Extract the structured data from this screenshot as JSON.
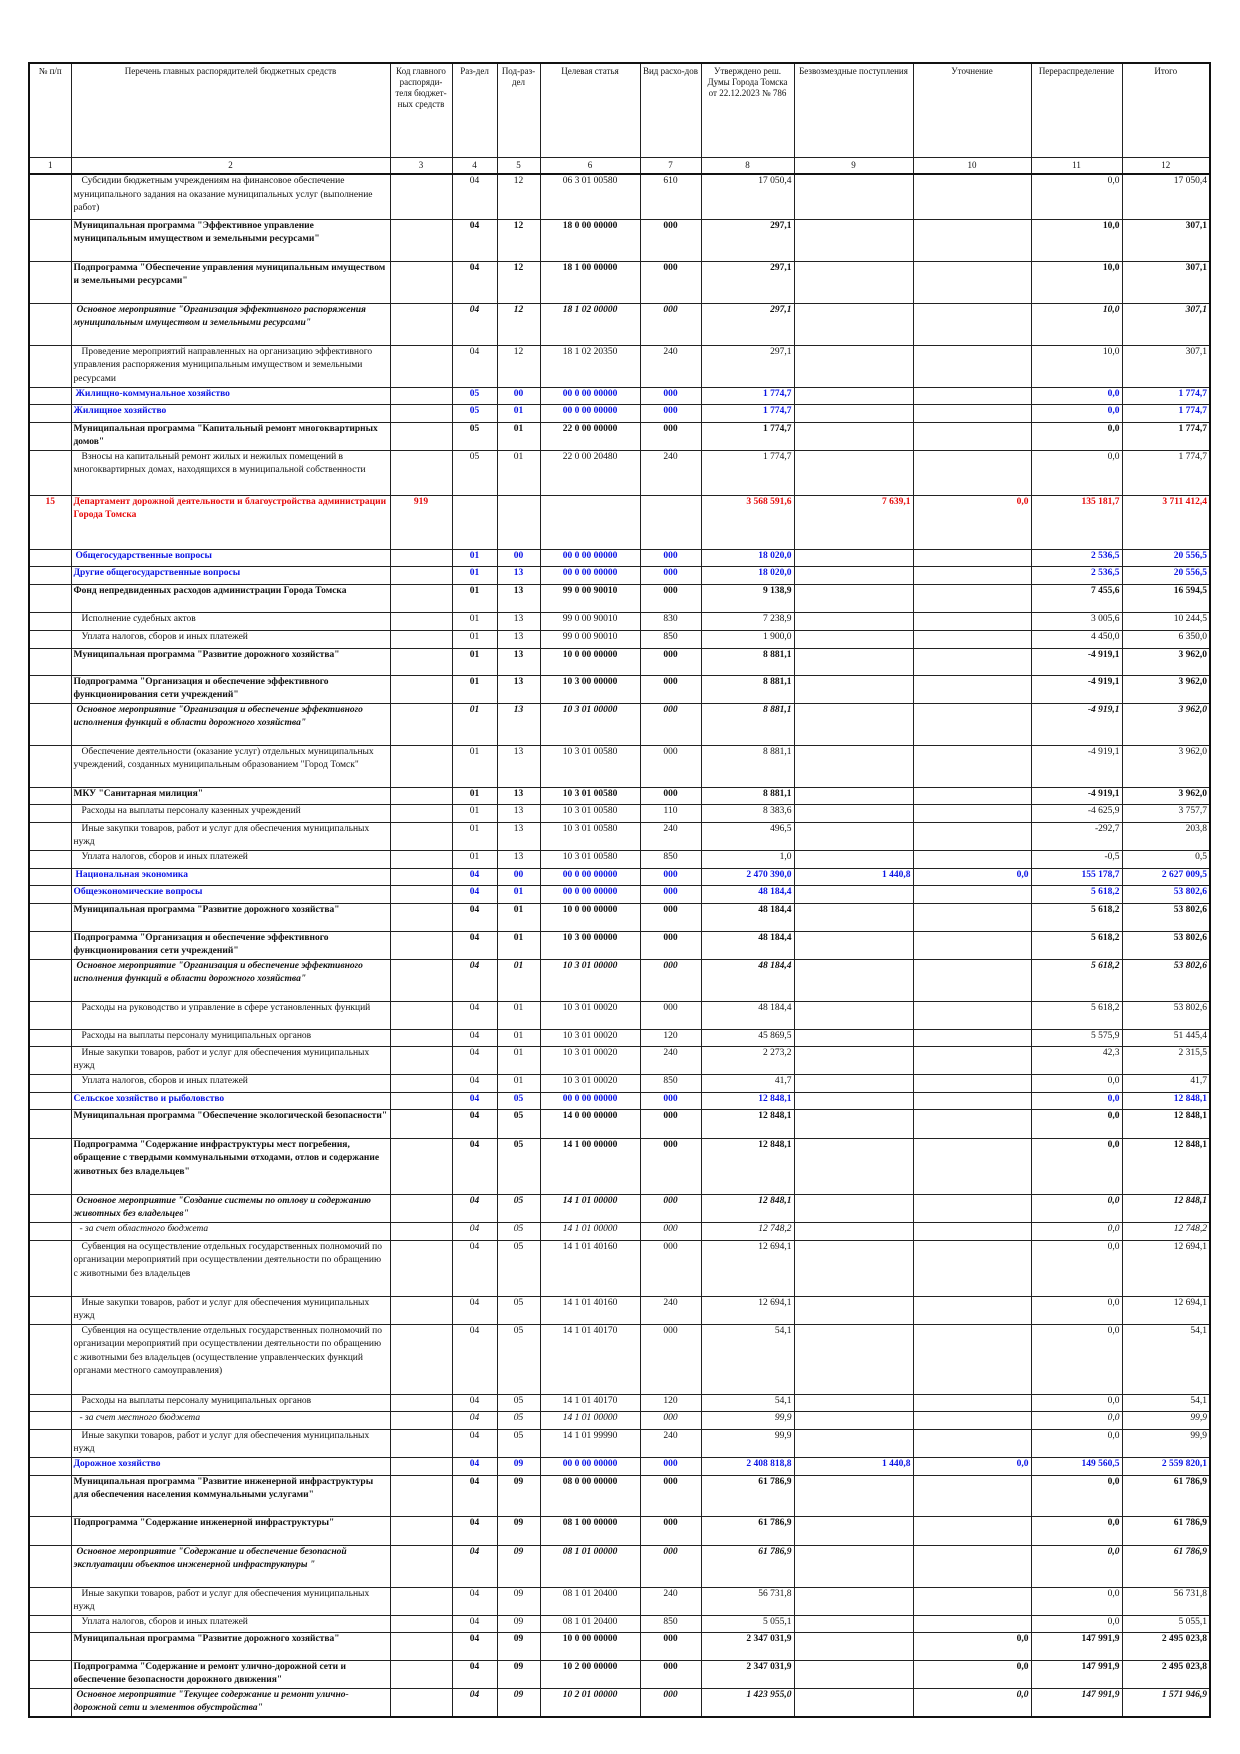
{
  "header": {
    "columns": [
      "№ п/п",
      "Перечень главных распорядителей бюджетных средств",
      "Код главного распоряди-теля бюджет-ных средств",
      "Раз-дел",
      "Под-раз-дел",
      "Целевая статья",
      "Вид расхо-дов",
      "Утверждено реш. Думы Города Томска от 22.12.2023 № 786",
      "Безвозмездные поступления",
      "Уточнение",
      "Перераспределение",
      "Итого"
    ],
    "numbers": [
      "1",
      "2",
      "3",
      "4",
      "5",
      "6",
      "7",
      "8",
      "9",
      "10",
      "11",
      "12"
    ]
  },
  "colors": {
    "section": "#0a14e6",
    "department": "#e60a0a",
    "text": "#111111"
  },
  "rows": [
    {
      "level": "item",
      "num": "",
      "name": "Субсидии бюджетным учреждениям на финансовое обеспечение муниципального задания на оказание муниципальных услуг (выполнение работ)",
      "code": "",
      "rz": "04",
      "prz": "12",
      "cs": "06 3 01 00580",
      "vr": "610",
      "approved": "17 050,4",
      "grants": "",
      "clarif": "",
      "redistr": "0,0",
      "total": "17 050,4"
    },
    {
      "level": "program",
      "num": "",
      "name": "Муниципальная программа \"Эффективное управление муниципальным имуществом и земельными ресурсами\"",
      "code": "",
      "rz": "04",
      "prz": "12",
      "cs": "18 0 00 00000",
      "vr": "000",
      "approved": "297,1",
      "grants": "",
      "clarif": "",
      "redistr": "10,0",
      "total": "307,1"
    },
    {
      "level": "program",
      "num": "",
      "name": "Подпрограмма \"Обеспечение управления муниципальным имуществом и земельными ресурсами\"",
      "code": "",
      "rz": "04",
      "prz": "12",
      "cs": "18 1 00 00000",
      "vr": "000",
      "approved": "297,1",
      "grants": "",
      "clarif": "",
      "redistr": "10,0",
      "total": "307,1"
    },
    {
      "level": "event",
      "num": "",
      "name": "Основное мероприятие \"Организация эффективного распоряжения муниципальным имуществом и земельными ресурсами\"",
      "code": "",
      "rz": "04",
      "prz": "12",
      "cs": "18 1 02 00000",
      "vr": "000",
      "approved": "297,1",
      "grants": "",
      "clarif": "",
      "redistr": "10,0",
      "total": "307,1"
    },
    {
      "level": "item",
      "num": "",
      "name": "Проведение мероприятий направленных на организацию эффективного управления распоряжения муниципальным имуществом и земельными ресурсами",
      "code": "",
      "rz": "04",
      "prz": "12",
      "cs": "18 1 02 20350",
      "vr": "240",
      "approved": "297,1",
      "grants": "",
      "clarif": "",
      "redistr": "10,0",
      "total": "307,1"
    },
    {
      "level": "section-major",
      "num": "",
      "name": "Жилищно-коммунальное хозяйство",
      "code": "",
      "rz": "05",
      "prz": "00",
      "cs": "00 0 00 00000",
      "vr": "000",
      "approved": "1 774,7",
      "grants": "",
      "clarif": "",
      "redistr": "0,0",
      "total": "1 774,7"
    },
    {
      "level": "section",
      "num": "",
      "name": "Жилищное хозяйство",
      "code": "",
      "rz": "05",
      "prz": "01",
      "cs": "00 0 00 00000",
      "vr": "000",
      "approved": "1 774,7",
      "grants": "",
      "clarif": "",
      "redistr": "0,0",
      "total": "1 774,7"
    },
    {
      "level": "program",
      "num": "",
      "name": "Муниципальная программа \"Капитальный ремонт многоквартирных домов\"",
      "code": "",
      "rz": "05",
      "prz": "01",
      "cs": "22 0 00 00000",
      "vr": "000",
      "approved": "1 774,7",
      "grants": "",
      "clarif": "",
      "redistr": "0,0",
      "total": "1 774,7"
    },
    {
      "level": "item",
      "num": "",
      "name": "Взносы на капитальный ремонт жилых и нежилых помещений в многоквартирных домах, находящихся в муниципальной собственности",
      "code": "",
      "rz": "05",
      "prz": "01",
      "cs": "22 0 00 20480",
      "vr": "240",
      "approved": "1 774,7",
      "grants": "",
      "clarif": "",
      "redistr": "0,0",
      "total": "1 774,7"
    },
    {
      "level": "department",
      "num": "15",
      "name": "Департамент дорожной деятельности и благоустройства администрации Города Томска",
      "code": "919",
      "rz": "",
      "prz": "",
      "cs": "",
      "vr": "",
      "approved": "3 568 591,6",
      "grants": "7 639,1",
      "clarif": "0,0",
      "redistr": "135 181,7",
      "total": "3 711 412,4"
    },
    {
      "level": "section-major",
      "num": "",
      "name": "Общегосударственные вопросы",
      "code": "",
      "rz": "01",
      "prz": "00",
      "cs": "00 0 00 00000",
      "vr": "000",
      "approved": "18 020,0",
      "grants": "",
      "clarif": "",
      "redistr": "2 536,5",
      "total": "20 556,5"
    },
    {
      "level": "section",
      "num": "",
      "name": "Другие общегосударственные вопросы",
      "code": "",
      "rz": "01",
      "prz": "13",
      "cs": "00 0 00 00000",
      "vr": "000",
      "approved": "18 020,0",
      "grants": "",
      "clarif": "",
      "redistr": "2 536,5",
      "total": "20 556,5"
    },
    {
      "level": "program",
      "num": "",
      "name": "  Фонд непредвиденных расходов администрации Города Томска",
      "code": "",
      "rz": "01",
      "prz": "13",
      "cs": "99 0 00 90010",
      "vr": "000",
      "approved": "9 138,9",
      "grants": "",
      "clarif": "",
      "redistr": "7 455,6",
      "total": "16 594,5"
    },
    {
      "level": "item",
      "num": "",
      "name": "Исполнение судебных актов",
      "code": "",
      "rz": "01",
      "prz": "13",
      "cs": "99 0 00 90010",
      "vr": "830",
      "approved": "7 238,9",
      "grants": "",
      "clarif": "",
      "redistr": "3 005,6",
      "total": "10 244,5"
    },
    {
      "level": "item",
      "num": "",
      "name": "Уплата налогов, сборов и иных платежей",
      "code": "",
      "rz": "01",
      "prz": "13",
      "cs": "99 0 00 90010",
      "vr": "850",
      "approved": "1 900,0",
      "grants": "",
      "clarif": "",
      "redistr": "4 450,0",
      "total": "6 350,0"
    },
    {
      "level": "program",
      "num": "",
      "name": "Муниципальная программа \"Развитие дорожного хозяйства\"",
      "code": "",
      "rz": "01",
      "prz": "13",
      "cs": "10 0 00 00000",
      "vr": "000",
      "approved": "8 881,1",
      "grants": "",
      "clarif": "",
      "redistr": "-4 919,1",
      "total": "3 962,0"
    },
    {
      "level": "program",
      "num": "",
      "name": "Подпрограмма \"Организация и обеспечение эффективного функционирования сети учреждений\"",
      "code": "",
      "rz": "01",
      "prz": "13",
      "cs": "10 3 00 00000",
      "vr": "000",
      "approved": "8 881,1",
      "grants": "",
      "clarif": "",
      "redistr": "-4 919,1",
      "total": "3 962,0"
    },
    {
      "level": "event",
      "num": "",
      "name": "Основное мероприятие \"Организация и обеспечение эффективного исполнения функций в области дорожного хозяйства\"",
      "code": "",
      "rz": "01",
      "prz": "13",
      "cs": "10 3 01 00000",
      "vr": "000",
      "approved": "8 881,1",
      "grants": "",
      "clarif": "",
      "redistr": "-4 919,1",
      "total": "3 962,0"
    },
    {
      "level": "item",
      "num": "",
      "name": "Обеспечение деятельности (оказание услуг) отдельных муниципальных учреждений, созданных муниципальным образованием \"Город Томск\"",
      "code": "",
      "rz": "01",
      "prz": "13",
      "cs": "10 3 01 00580",
      "vr": "000",
      "approved": "8 881,1",
      "grants": "",
      "clarif": "",
      "redistr": "-4 919,1",
      "total": "3 962,0"
    },
    {
      "level": "program",
      "num": "",
      "name": "МКУ \"Санитарная милиция\"",
      "code": "",
      "rz": "01",
      "prz": "13",
      "cs": "10 3 01 00580",
      "vr": "000",
      "approved": "8 881,1",
      "grants": "",
      "clarif": "",
      "redistr": "-4 919,1",
      "total": "3 962,0"
    },
    {
      "level": "item",
      "num": "",
      "name": "Расходы на выплаты персоналу казенных учреждений",
      "code": "",
      "rz": "01",
      "prz": "13",
      "cs": "10 3 01 00580",
      "vr": "110",
      "approved": "8 383,6",
      "grants": "",
      "clarif": "",
      "redistr": "-4 625,9",
      "total": "3 757,7"
    },
    {
      "level": "item",
      "num": "",
      "name": "Иные закупки товаров, работ и услуг для обеспечения муниципальных нужд",
      "code": "",
      "rz": "01",
      "prz": "13",
      "cs": "10 3 01 00580",
      "vr": "240",
      "approved": "496,5",
      "grants": "",
      "clarif": "",
      "redistr": "-292,7",
      "total": "203,8"
    },
    {
      "level": "item",
      "num": "",
      "name": "Уплата налогов, сборов и иных платежей",
      "code": "",
      "rz": "01",
      "prz": "13",
      "cs": "10 3 01 00580",
      "vr": "850",
      "approved": "1,0",
      "grants": "",
      "clarif": "",
      "redistr": "-0,5",
      "total": "0,5"
    },
    {
      "level": "section-major",
      "num": "",
      "name": "Национальная экономика",
      "code": "",
      "rz": "04",
      "prz": "00",
      "cs": "00 0 00 00000",
      "vr": "000",
      "approved": "2 470 390,0",
      "grants": "1 440,8",
      "clarif": "0,0",
      "redistr": "155 178,7",
      "total": "2 627 009,5"
    },
    {
      "level": "section",
      "num": "",
      "name": "Общеэкономические вопросы",
      "code": "",
      "rz": "04",
      "prz": "01",
      "cs": "00 0 00 00000",
      "vr": "000",
      "approved": "48 184,4",
      "grants": "",
      "clarif": "",
      "redistr": "5 618,2",
      "total": "53 802,6"
    },
    {
      "level": "program",
      "num": "",
      "name": "Муниципальная программа \"Развитие дорожного хозяйства\"",
      "code": "",
      "rz": "04",
      "prz": "01",
      "cs": "10 0 00 00000",
      "vr": "000",
      "approved": "48 184,4",
      "grants": "",
      "clarif": "",
      "redistr": "5 618,2",
      "total": "53 802,6"
    },
    {
      "level": "program",
      "num": "",
      "name": "Подпрограмма \"Организация и обеспечение эффективного функционирования сети учреждений\"",
      "code": "",
      "rz": "04",
      "prz": "01",
      "cs": "10 3 00 00000",
      "vr": "000",
      "approved": "48 184,4",
      "grants": "",
      "clarif": "",
      "redistr": "5 618,2",
      "total": "53 802,6"
    },
    {
      "level": "event",
      "num": "",
      "name": "Основное мероприятие \"Организация и обеспечение эффективного исполнения функций в области дорожного хозяйства\"",
      "code": "",
      "rz": "04",
      "prz": "01",
      "cs": "10 3 01 00000",
      "vr": "000",
      "approved": "48 184,4",
      "grants": "",
      "clarif": "",
      "redistr": "5 618,2",
      "total": "53 802,6"
    },
    {
      "level": "item",
      "num": "",
      "name": "Расходы на руководство и управление в сфере установленных функций",
      "code": "",
      "rz": "04",
      "prz": "01",
      "cs": "10 3 01 00020",
      "vr": "000",
      "approved": "48 184,4",
      "grants": "",
      "clarif": "",
      "redistr": "5 618,2",
      "total": "53 802,6"
    },
    {
      "level": "item",
      "num": "",
      "name": "Расходы на выплаты персоналу муниципальных органов",
      "code": "",
      "rz": "04",
      "prz": "01",
      "cs": "10 3 01 00020",
      "vr": "120",
      "approved": "45 869,5",
      "grants": "",
      "clarif": "",
      "redistr": "5 575,9",
      "total": "51 445,4"
    },
    {
      "level": "item",
      "num": "",
      "name": "Иные закупки товаров, работ и услуг для обеспечения муниципальных нужд",
      "code": "",
      "rz": "04",
      "prz": "01",
      "cs": "10 3 01 00020",
      "vr": "240",
      "approved": "2 273,2",
      "grants": "",
      "clarif": "",
      "redistr": "42,3",
      "total": "2 315,5"
    },
    {
      "level": "item",
      "num": "",
      "name": "Уплата налогов, сборов и иных платежей",
      "code": "",
      "rz": "04",
      "prz": "01",
      "cs": "10 3 01 00020",
      "vr": "850",
      "approved": "41,7",
      "grants": "",
      "clarif": "",
      "redistr": "0,0",
      "total": "41,7"
    },
    {
      "level": "section",
      "num": "",
      "name": "Сельское хозяйство и рыболовство",
      "code": "",
      "rz": "04",
      "prz": "05",
      "cs": "00 0 00 00000",
      "vr": "000",
      "approved": "12 848,1",
      "grants": "",
      "clarif": "",
      "redistr": "0,0",
      "total": "12 848,1"
    },
    {
      "level": "program",
      "num": "",
      "name": "Муниципальная программа \"Обеспечение экологической безопасности\"",
      "code": "",
      "rz": "04",
      "prz": "05",
      "cs": "14 0 00 00000",
      "vr": "000",
      "approved": "12 848,1",
      "grants": "",
      "clarif": "",
      "redistr": "0,0",
      "total": "12 848,1"
    },
    {
      "level": "program",
      "num": "",
      "name": "Подпрограмма \"Содержание инфраструктуры мест погребения, обращение с твердыми коммунальными отходами, отлов и содержание животных без владельцев\"",
      "code": "",
      "rz": "04",
      "prz": "05",
      "cs": "14 1 00 00000",
      "vr": "000",
      "approved": "12 848,1",
      "grants": "",
      "clarif": "",
      "redistr": "0,0",
      "total": "12 848,1"
    },
    {
      "level": "event",
      "num": "",
      "name": "Основное мероприятие \"Создание системы по отлову и содержанию животных без владельцев\"",
      "code": "",
      "rz": "04",
      "prz": "05",
      "cs": "14 1 01 00000",
      "vr": "000",
      "approved": "12 848,1",
      "grants": "",
      "clarif": "",
      "redistr": "0,0",
      "total": "12 848,1"
    },
    {
      "level": "source",
      "num": "",
      "name": "- за счет областного бюджета",
      "code": "",
      "rz": "04",
      "prz": "05",
      "cs": "14 1 01 00000",
      "vr": "000",
      "approved": "12 748,2",
      "grants": "",
      "clarif": "",
      "redistr": "0,0",
      "total": "12 748,2"
    },
    {
      "level": "item",
      "num": "",
      "name": "Субвенция на осуществление отдельных государственных полномочий по организации мероприятий при осуществлении деятельности по обращению с животными без владельцев",
      "code": "",
      "rz": "04",
      "prz": "05",
      "cs": "14 1 01 40160",
      "vr": "000",
      "approved": "12 694,1",
      "grants": "",
      "clarif": "",
      "redistr": "0,0",
      "total": "12 694,1"
    },
    {
      "level": "item",
      "num": "",
      "name": "Иные закупки товаров, работ и услуг для обеспечения муниципальных нужд",
      "code": "",
      "rz": "04",
      "prz": "05",
      "cs": "14 1 01 40160",
      "vr": "240",
      "approved": "12 694,1",
      "grants": "",
      "clarif": "",
      "redistr": "0,0",
      "total": "12 694,1"
    },
    {
      "level": "item",
      "num": "",
      "name": "Субвенция на осуществление отдельных государственных полномочий по организации мероприятий при осуществлении деятельности по обращению с животными без владельцев (осуществление управленческих функций органами местного самоуправления)",
      "code": "",
      "rz": "04",
      "prz": "05",
      "cs": "14 1 01 40170",
      "vr": "000",
      "approved": "54,1",
      "grants": "",
      "clarif": "",
      "redistr": "0,0",
      "total": "54,1"
    },
    {
      "level": "item",
      "num": "",
      "name": "Расходы на выплаты персоналу муниципальных органов",
      "code": "",
      "rz": "04",
      "prz": "05",
      "cs": "14 1 01 40170",
      "vr": "120",
      "approved": "54,1",
      "grants": "",
      "clarif": "",
      "redistr": "0,0",
      "total": "54,1"
    },
    {
      "level": "source",
      "num": "",
      "name": "- за счет местного бюджета",
      "code": "",
      "rz": "04",
      "prz": "05",
      "cs": "14 1 01 00000",
      "vr": "000",
      "approved": "99,9",
      "grants": "",
      "clarif": "",
      "redistr": "0,0",
      "total": "99,9"
    },
    {
      "level": "item",
      "num": "",
      "name": "Иные закупки товаров, работ и услуг для обеспечения муниципальных нужд",
      "code": "",
      "rz": "04",
      "prz": "05",
      "cs": "14 1 01 99990",
      "vr": "240",
      "approved": "99,9",
      "grants": "",
      "clarif": "",
      "redistr": "0,0",
      "total": "99,9"
    },
    {
      "level": "section",
      "num": "",
      "name": "Дорожное хозяйство",
      "code": "",
      "rz": "04",
      "prz": "09",
      "cs": "00 0 00 00000",
      "vr": "000",
      "approved": "2 408 818,8",
      "grants": "1 440,8",
      "clarif": "0,0",
      "redistr": "149 560,5",
      "total": "2 559 820,1"
    },
    {
      "level": "program",
      "num": "",
      "name": "Муниципальная программа \"Развитие инженерной инфраструктуры для обеспечения населения коммунальными услугами\"",
      "code": "",
      "rz": "04",
      "prz": "09",
      "cs": "08 0 00 00000",
      "vr": "000",
      "approved": "61 786,9",
      "grants": "",
      "clarif": "",
      "redistr": "0,0",
      "total": "61 786,9"
    },
    {
      "level": "program",
      "num": "",
      "name": "Подпрограмма \"Содержание инженерной инфраструктуры\"",
      "code": "",
      "rz": "04",
      "prz": "09",
      "cs": "08 1 00 00000",
      "vr": "000",
      "approved": "61 786,9",
      "grants": "",
      "clarif": "",
      "redistr": "0,0",
      "total": "61 786,9"
    },
    {
      "level": "event",
      "num": "",
      "name": "Основное мероприятие \"Содержание и обеспечение безопасной эксплуатации объектов инженерной инфраструктуры \"",
      "code": "",
      "rz": "04",
      "prz": "09",
      "cs": "08 1 01 00000",
      "vr": "000",
      "approved": "61 786,9",
      "grants": "",
      "clarif": "",
      "redistr": "0,0",
      "total": "61 786,9"
    },
    {
      "level": "item",
      "num": "",
      "name": "Иные закупки товаров, работ и услуг для обеспечения муниципальных нужд",
      "code": "",
      "rz": "04",
      "prz": "09",
      "cs": "08 1 01 20400",
      "vr": "240",
      "approved": "56 731,8",
      "grants": "",
      "clarif": "",
      "redistr": "0,0",
      "total": "56 731,8"
    },
    {
      "level": "item",
      "num": "",
      "name": "Уплата налогов, сборов и иных платежей",
      "code": "",
      "rz": "04",
      "prz": "09",
      "cs": "08 1 01 20400",
      "vr": "850",
      "approved": "5 055,1",
      "grants": "",
      "clarif": "",
      "redistr": "0,0",
      "total": "5 055,1"
    },
    {
      "level": "program",
      "num": "",
      "name": "Муниципальная программа \"Развитие дорожного хозяйства\"",
      "code": "",
      "rz": "04",
      "prz": "09",
      "cs": "10 0 00 00000",
      "vr": "000",
      "approved": "2 347 031,9",
      "grants": "",
      "clarif": "0,0",
      "redistr": "147 991,9",
      "total": "2 495 023,8"
    },
    {
      "level": "program",
      "num": "",
      "name": "Подпрограмма \"Содержание и ремонт улично-дорожной сети и обеспечение безопасности дорожного движения\"",
      "code": "",
      "rz": "04",
      "prz": "09",
      "cs": "10 2 00 00000",
      "vr": "000",
      "approved": "2 347 031,9",
      "grants": "",
      "clarif": "0,0",
      "redistr": "147 991,9",
      "total": "2 495 023,8"
    },
    {
      "level": "event",
      "num": "",
      "name": "Основное мероприятие \"Текущее содержание и ремонт улично-дорожной сети и элементов обустройства\"",
      "code": "",
      "rz": "04",
      "prz": "09",
      "cs": "10 2 01 00000",
      "vr": "000",
      "approved": "1 423 955,0",
      "grants": "",
      "clarif": "0,0",
      "redistr": "147 991,9",
      "total": "1 571 946,9"
    }
  ]
}
